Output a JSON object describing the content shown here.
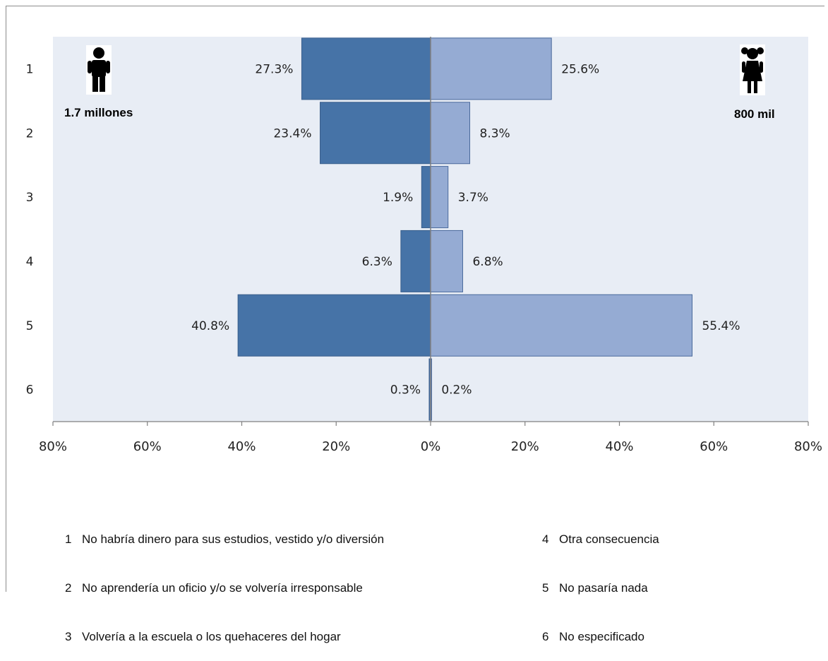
{
  "chart_data": {
    "type": "bar",
    "orientation": "horizontal-butterfly",
    "categories": [
      "1",
      "2",
      "3",
      "4",
      "5",
      "6"
    ],
    "series": [
      {
        "name": "1.7 millones",
        "side": "left",
        "values": [
          27.3,
          23.4,
          1.9,
          6.3,
          40.8,
          0.3
        ],
        "color": "#4673a7"
      },
      {
        "name": "800 mil",
        "side": "right",
        "values": [
          25.6,
          8.3,
          3.7,
          6.8,
          55.4,
          0.2
        ],
        "color": "#95abd3"
      }
    ],
    "value_labels_left": [
      "27.3%",
      "23.4%",
      "1.9%",
      "6.3%",
      "40.8%",
      "0.3%"
    ],
    "value_labels_right": [
      "25.6%",
      "8.3%",
      "3.7%",
      "6.8%",
      "55.4%",
      "0.2%"
    ],
    "x_ticks": [
      "80%",
      "60%",
      "40%",
      "20%",
      "0%",
      "20%",
      "40%",
      "60%",
      "80%"
    ],
    "x_tick_values": [
      -80,
      -60,
      -40,
      -20,
      0,
      20,
      40,
      60,
      80
    ],
    "xlim": [
      -80,
      80
    ],
    "grid": false,
    "plot_background": "#e8edf5",
    "icons": {
      "left": "boy-icon",
      "right": "girl-icon"
    }
  },
  "legend": {
    "left": [
      {
        "num": "1",
        "text": "No habría dinero para sus estudios, vestido y/o diversión"
      },
      {
        "num": "2",
        "text": "No aprendería un oficio y/o se volvería irresponsable"
      },
      {
        "num": "3",
        "text": "Volvería a la escuela o los quehaceres del hogar"
      }
    ],
    "right": [
      {
        "num": "4",
        "text": "Otra consecuencia"
      },
      {
        "num": "5",
        "text": "No pasaría nada"
      },
      {
        "num": "6",
        "text": "No especificado"
      }
    ]
  }
}
